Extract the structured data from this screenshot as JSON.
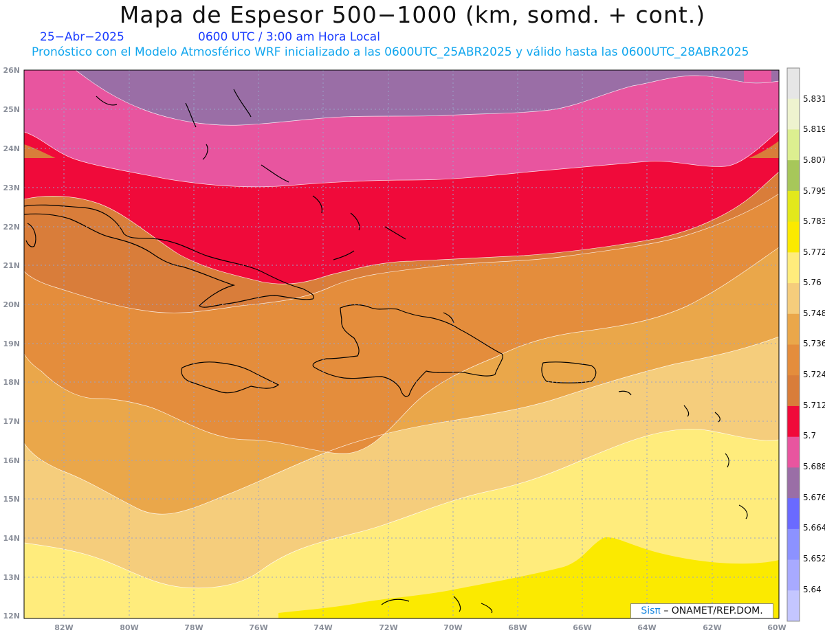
{
  "header": {
    "title": "Mapa de Espesor 500−1000 (km, somd. + cont.)",
    "date": "25−Abr−2025",
    "time": "0600 UTC / 3:00 am Hora Local",
    "model_line": "Pronóstico con el Modelo Atmosférico WRF inicializado a las 0600UTC_25ABR2025 y válido hasta las  0600UTC_28ABR2025"
  },
  "axes": {
    "lat_labels": [
      "26N",
      "25N",
      "24N",
      "23N",
      "22N",
      "21N",
      "20N",
      "19N",
      "18N",
      "17N",
      "16N",
      "15N",
      "14N",
      "13N",
      "12N"
    ],
    "lon_labels": [
      "82W",
      "80W",
      "78W",
      "76W",
      "74W",
      "72W",
      "70W",
      "68W",
      "66W",
      "64W",
      "62W",
      "60W"
    ]
  },
  "legend": {
    "levels": [
      "5.831",
      "5.819",
      "5.807",
      "5.795",
      "5.783",
      "5.772",
      "5.76",
      "5.748",
      "5.736",
      "5.724",
      "5.712",
      "5.7",
      "5.688",
      "5.676",
      "5.664",
      "5.652",
      "5.64"
    ],
    "colors": [
      "#e6e6e6",
      "#eef3cf",
      "#dcef90",
      "#a7c75a",
      "#e2e81b",
      "#fbea00",
      "#ffec7c",
      "#f5cd7c",
      "#eaa74a",
      "#e48d3c",
      "#d97d3a",
      "#f00a3a",
      "#e8559f",
      "#9a6ea6",
      "#6a6aff",
      "#8c92ff",
      "#a8aaff",
      "#c4c6ff"
    ]
  },
  "credit": {
    "brand": "Sisπ",
    "org": "– ONAMET/REP.DOM."
  }
}
